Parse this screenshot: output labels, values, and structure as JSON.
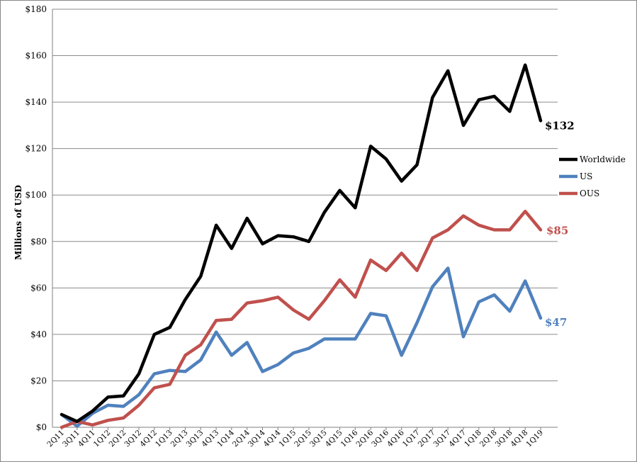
{
  "chart_data": {
    "type": "line",
    "ylabel": "Millions of USD",
    "ylim": [
      0,
      180
    ],
    "yticks": [
      "$0",
      "$20",
      "$40",
      "$60",
      "$80",
      "$100",
      "$120",
      "$140",
      "$160",
      "$180"
    ],
    "grid": "horizontal",
    "legend_position": "right",
    "categories": [
      "2Q11",
      "3Q11",
      "4Q11",
      "1Q12",
      "2Q12",
      "3Q12",
      "4Q12",
      "1Q13",
      "2Q13",
      "3Q13",
      "4Q13",
      "1Q14",
      "2Q14",
      "3Q14",
      "4Q14",
      "1Q15",
      "2Q15",
      "3Q15",
      "4Q15",
      "1Q16",
      "2Q16",
      "3Q16",
      "4Q16",
      "1Q17",
      "2Q17",
      "3Q17",
      "4Q17",
      "1Q18",
      "2Q18",
      "3Q18",
      "4Q18",
      "1Q19"
    ],
    "series": [
      {
        "name": "Worldwide",
        "color": "#000000",
        "end_label": "$132",
        "values": [
          5.5,
          2.5,
          7,
          13,
          13.5,
          23,
          40,
          43,
          55,
          65,
          87,
          77,
          90,
          79,
          82.5,
          82,
          80,
          92.5,
          102,
          94.5,
          121,
          115.5,
          106,
          113,
          142,
          153.5,
          130,
          141,
          142.5,
          136,
          156,
          132
        ]
      },
      {
        "name": "US",
        "color": "#4f81bd",
        "end_label": "$47",
        "values": [
          5.5,
          0.5,
          6,
          9.5,
          9,
          14,
          23,
          24.5,
          24,
          29,
          41,
          31,
          36.5,
          24,
          27,
          32,
          34,
          38,
          38,
          38,
          49,
          48,
          31,
          45,
          60.5,
          68.5,
          39,
          54,
          57,
          50,
          63,
          47
        ]
      },
      {
        "name": "OUS",
        "color": "#c0504d",
        "end_label": "$85",
        "values": [
          0,
          2.5,
          1,
          3,
          4,
          9.5,
          17,
          18.5,
          31,
          35.5,
          46,
          46.5,
          53.5,
          54.5,
          56,
          50.5,
          46.5,
          54.5,
          63.5,
          56,
          72,
          67.5,
          75,
          67.5,
          81.5,
          85,
          91,
          87,
          85,
          85,
          93,
          85
        ]
      }
    ]
  }
}
